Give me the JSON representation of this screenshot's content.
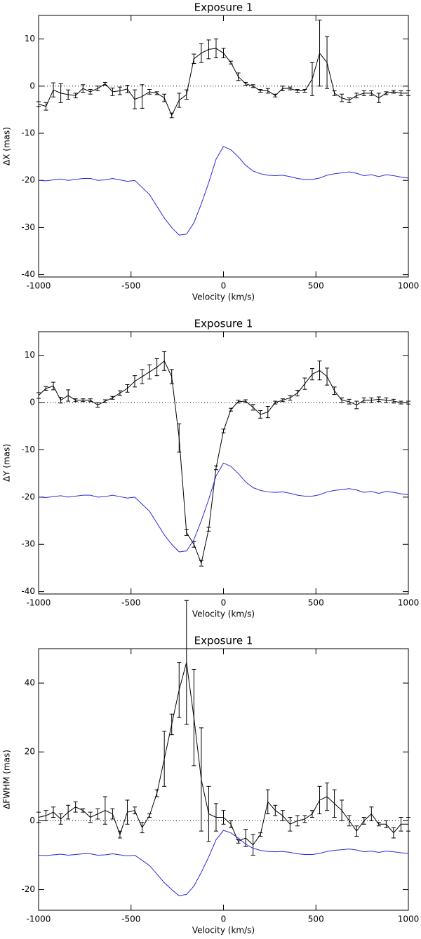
{
  "chart_data": [
    {
      "type": "line",
      "title": "Exposure 1",
      "xlabel": "Velocity (km/s)",
      "ylabel": "ΔX (mas)",
      "xlim": [
        -1000,
        1000
      ],
      "xticks": [
        -1000,
        -500,
        0,
        500,
        1000
      ],
      "ylim": [
        -40.5,
        15
      ],
      "yticks": [
        -40,
        -30,
        -20,
        -10,
        0,
        10
      ],
      "zero_line": true,
      "x": [
        -1000,
        -960,
        -920,
        -880,
        -840,
        -800,
        -760,
        -720,
        -680,
        -640,
        -600,
        -560,
        -520,
        -480,
        -440,
        -400,
        -360,
        -320,
        -280,
        -240,
        -200,
        -160,
        -120,
        -80,
        -40,
        0,
        40,
        80,
        120,
        160,
        200,
        240,
        280,
        320,
        360,
        400,
        440,
        480,
        520,
        560,
        600,
        640,
        680,
        720,
        760,
        800,
        840,
        880,
        920,
        960,
        1000
      ],
      "series": [
        {
          "color": "#000000",
          "values": [
            -3.8,
            -4.3,
            -0.8,
            -1.5,
            -1.8,
            -2.0,
            -0.5,
            -1.2,
            -0.5,
            0.5,
            -1.2,
            -1.0,
            -0.6,
            -2.8,
            -2.2,
            -1.2,
            -1.5,
            -2.5,
            -6.2,
            -3.0,
            -1.8,
            5.8,
            7.0,
            7.8,
            8.0,
            7.0,
            5.0,
            2.0,
            0.5,
            0.0,
            -1.0,
            -1.0,
            -2.0,
            -0.5,
            -0.5,
            -1.0,
            -1.0,
            1.5,
            7.0,
            5.0,
            -1.5,
            -2.5,
            -3.0,
            -2.0,
            -1.5,
            -1.5,
            -2.5,
            -1.5,
            -1.2,
            -1.5,
            -1.5
          ],
          "errors": [
            0.5,
            0.8,
            1.5,
            2,
            1,
            0.5,
            0.8,
            0.5,
            0.5,
            0.3,
            0.8,
            0.8,
            0.8,
            2,
            2.5,
            0.5,
            0.3,
            0.8,
            0.5,
            1.5,
            1,
            1,
            2,
            2,
            2,
            1,
            0.3,
            0.8,
            0.3,
            0.3,
            0.3,
            0.5,
            0.3,
            0.5,
            0.3,
            0.3,
            0.3,
            3.5,
            7,
            5.5,
            0.5,
            0.8,
            0.5,
            0.5,
            0.5,
            0.5,
            1,
            0.3,
            0.3,
            0.5,
            0.5
          ]
        },
        {
          "color": "#2a2ad8",
          "values": [
            -20.0,
            -20.1,
            -19.9,
            -19.7,
            -20.0,
            -19.8,
            -19.6,
            -19.6,
            -20.0,
            -19.9,
            -19.6,
            -19.9,
            -20.2,
            -20.0,
            -21.5,
            -23.0,
            -25.5,
            -28.0,
            -30.0,
            -31.6,
            -31.4,
            -29.0,
            -25.0,
            -20.5,
            -15.5,
            -12.8,
            -13.5,
            -15.0,
            -16.8,
            -18.0,
            -18.6,
            -18.9,
            -19.0,
            -18.9,
            -19.2,
            -19.6,
            -19.8,
            -19.8,
            -19.5,
            -18.9,
            -18.6,
            -18.4,
            -18.2,
            -18.5,
            -19.0,
            -18.8,
            -19.2,
            -18.8,
            -19.0,
            -19.3,
            -19.5
          ]
        }
      ]
    },
    {
      "type": "line",
      "title": "Exposure 1",
      "xlabel": "Velocity (km/s)",
      "ylabel": "ΔY (mas)",
      "xlim": [
        -1000,
        1000
      ],
      "xticks": [
        -1000,
        -500,
        0,
        500,
        1000
      ],
      "ylim": [
        -40.5,
        15
      ],
      "yticks": [
        -40,
        -30,
        -20,
        -10,
        0,
        10
      ],
      "zero_line": true,
      "x": [
        -1000,
        -960,
        -920,
        -880,
        -840,
        -800,
        -760,
        -720,
        -680,
        -640,
        -600,
        -560,
        -520,
        -480,
        -440,
        -400,
        -360,
        -320,
        -280,
        -240,
        -200,
        -160,
        -120,
        -80,
        -40,
        0,
        40,
        80,
        120,
        160,
        200,
        240,
        280,
        320,
        360,
        400,
        440,
        480,
        520,
        560,
        600,
        640,
        680,
        720,
        760,
        800,
        840,
        880,
        920,
        960,
        1000
      ],
      "series": [
        {
          "color": "#000000",
          "values": [
            1.5,
            3.0,
            3.5,
            0.5,
            1.5,
            0.5,
            0.5,
            0.5,
            -0.5,
            0.3,
            1.0,
            2.0,
            3.0,
            4.5,
            5.5,
            6.5,
            7.5,
            8.8,
            5.5,
            -7.5,
            -27.5,
            -30.0,
            -34.0,
            -26.8,
            -13.8,
            -6.0,
            -1.5,
            0.2,
            0.3,
            -1.0,
            -2.5,
            -2.0,
            0.0,
            0.5,
            1.0,
            2.0,
            4.0,
            6.0,
            6.8,
            5.5,
            2.5,
            0.5,
            0.2,
            -0.5,
            0.5,
            0.5,
            0.7,
            0.5,
            0.3,
            0.0,
            0.0
          ],
          "errors": [
            0.6,
            0.4,
            0.8,
            0.6,
            1.2,
            0.3,
            0.3,
            0.3,
            0.5,
            0.3,
            0.3,
            0.5,
            0.8,
            1.2,
            1.5,
            1.5,
            1.8,
            2,
            1.5,
            3,
            0.6,
            0.6,
            0.6,
            0.4,
            0.4,
            0.4,
            0.3,
            0.3,
            0.3,
            0.6,
            0.8,
            1.2,
            0.3,
            0.3,
            0.5,
            0.6,
            1.2,
            1.2,
            2,
            1.8,
            0.8,
            0.5,
            0.5,
            0.8,
            0.5,
            0.5,
            0.5,
            0.5,
            0.4,
            0.3,
            0.3
          ]
        },
        {
          "color": "#2a2ad8",
          "values": [
            -20.0,
            -20.1,
            -19.9,
            -19.7,
            -20.0,
            -19.8,
            -19.6,
            -19.6,
            -20.0,
            -19.9,
            -19.6,
            -19.9,
            -20.2,
            -20.0,
            -21.5,
            -23.0,
            -25.5,
            -28.0,
            -30.0,
            -31.6,
            -31.4,
            -29.0,
            -25.0,
            -20.5,
            -15.5,
            -12.8,
            -13.5,
            -15.0,
            -16.8,
            -18.0,
            -18.6,
            -18.9,
            -19.0,
            -18.9,
            -19.2,
            -19.6,
            -19.8,
            -19.8,
            -19.5,
            -18.9,
            -18.6,
            -18.4,
            -18.2,
            -18.5,
            -19.0,
            -18.8,
            -19.2,
            -18.8,
            -19.0,
            -19.3,
            -19.5
          ]
        }
      ]
    },
    {
      "type": "line",
      "title": "Exposure 1",
      "xlabel": "Velocity (km/s)",
      "ylabel": "ΔFWHM (mas)",
      "xlim": [
        -1000,
        1000
      ],
      "xticks": [
        -1000,
        -500,
        0,
        500,
        1000
      ],
      "ylim": [
        -26,
        50
      ],
      "yticks": [
        -20,
        0,
        20,
        40
      ],
      "zero_line": true,
      "x": [
        -1000,
        -960,
        -920,
        -880,
        -840,
        -800,
        -760,
        -720,
        -680,
        -640,
        -600,
        -560,
        -520,
        -480,
        -440,
        -400,
        -360,
        -320,
        -280,
        -240,
        -200,
        -160,
        -120,
        -80,
        -40,
        0,
        40,
        80,
        120,
        160,
        200,
        240,
        280,
        320,
        360,
        400,
        440,
        480,
        520,
        560,
        600,
        640,
        680,
        720,
        760,
        800,
        840,
        880,
        920,
        960,
        1000
      ],
      "series": [
        {
          "color": "#000000",
          "values": [
            1,
            1.5,
            2.5,
            0.5,
            2.5,
            4,
            3,
            1,
            2,
            3,
            2,
            -4,
            2.5,
            3,
            -2,
            1.5,
            8,
            18,
            28,
            38,
            46,
            30,
            12,
            2,
            1,
            1,
            -1,
            -6,
            -5,
            -7,
            -4,
            5.5,
            3,
            1.5,
            -1,
            0,
            0.5,
            2,
            6,
            7,
            5,
            3,
            0,
            -3,
            0,
            2,
            -1,
            -1,
            -3.5,
            -1,
            -1
          ],
          "errors": [
            1.5,
            1.5,
            1.5,
            1.5,
            2,
            1.5,
            0.5,
            1.5,
            1.5,
            4,
            1.5,
            1,
            3.5,
            1,
            1.5,
            0.5,
            1,
            8,
            3,
            8,
            18,
            14,
            15,
            8,
            4,
            2,
            1,
            0.5,
            2.5,
            3,
            0.5,
            3.5,
            1.5,
            1.5,
            2,
            1.5,
            1,
            1,
            4,
            4,
            4,
            3,
            1.5,
            1.5,
            1,
            2,
            0.5,
            1,
            1.5,
            2,
            2
          ]
        },
        {
          "color": "#2a2ad8",
          "values": [
            -10.0,
            -10.1,
            -9.9,
            -9.7,
            -10.0,
            -9.8,
            -9.6,
            -9.6,
            -10.0,
            -9.9,
            -9.6,
            -9.9,
            -10.2,
            -10.0,
            -11.5,
            -13.0,
            -15.5,
            -18.0,
            -20.0,
            -21.8,
            -21.4,
            -19.0,
            -15.0,
            -10.5,
            -5.5,
            -2.8,
            -3.5,
            -5.0,
            -6.8,
            -8.0,
            -8.6,
            -8.9,
            -9.0,
            -8.9,
            -9.2,
            -9.6,
            -9.8,
            -9.8,
            -9.5,
            -8.9,
            -8.6,
            -8.4,
            -8.2,
            -8.5,
            -9.0,
            -8.8,
            -9.2,
            -8.8,
            -9.0,
            -9.3,
            -9.5
          ]
        }
      ]
    }
  ]
}
